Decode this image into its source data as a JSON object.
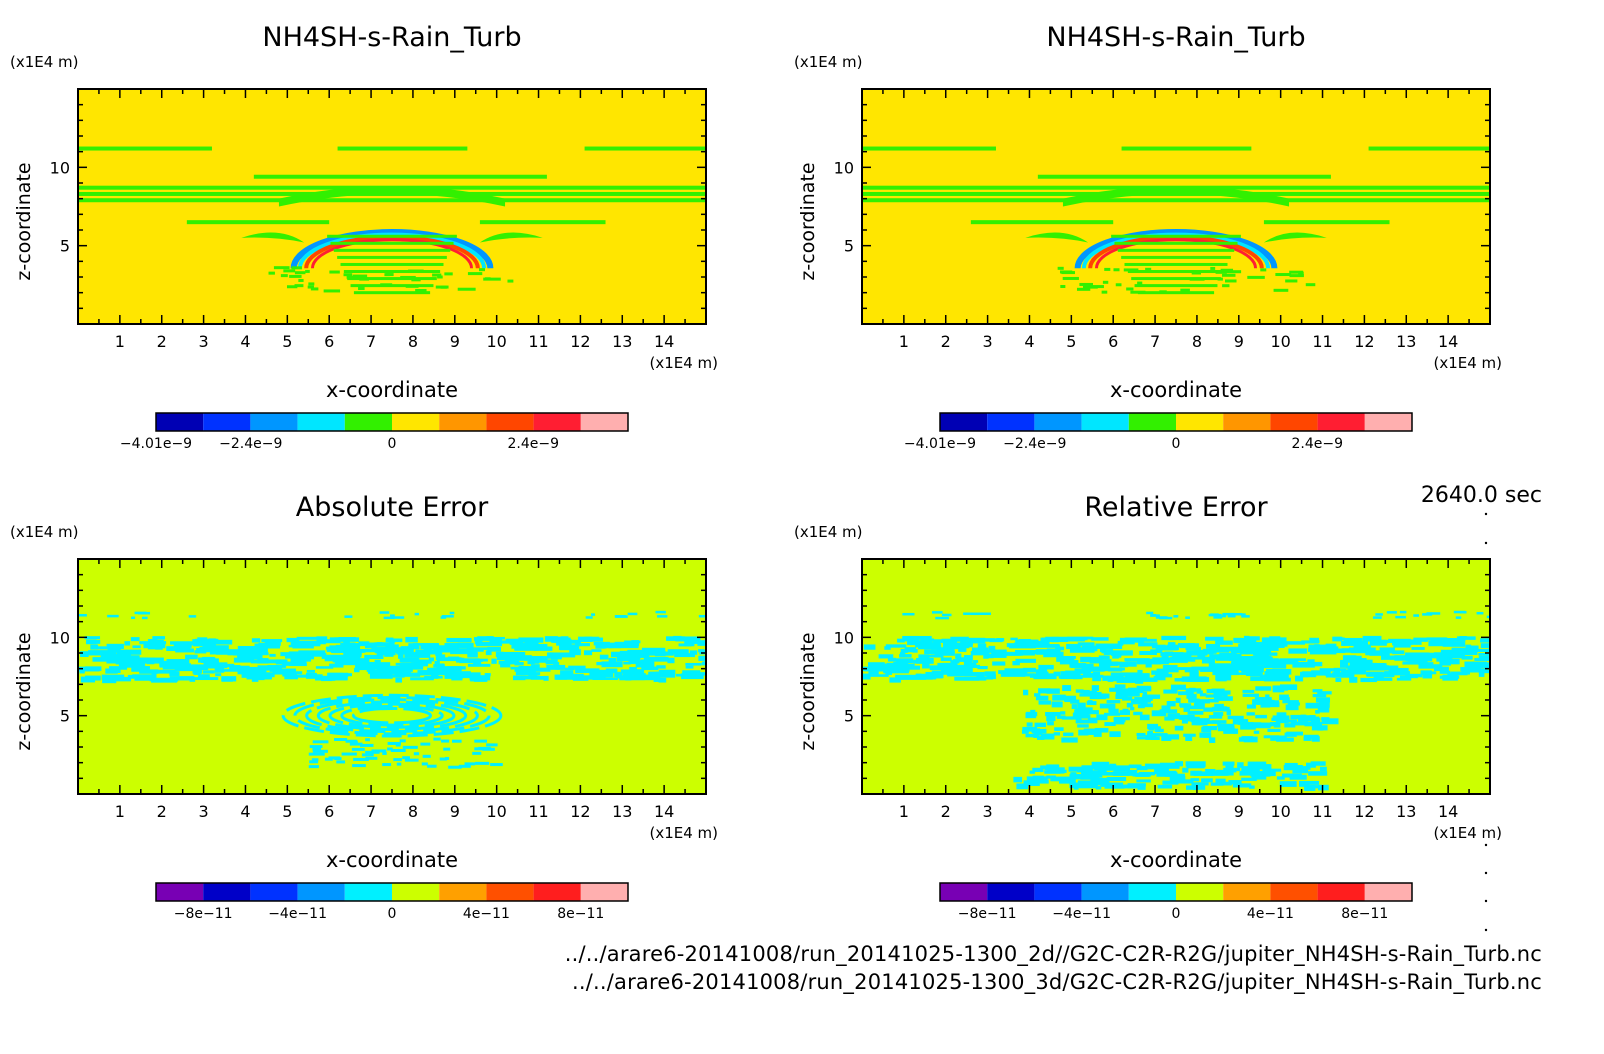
{
  "time_label": "2640.0 sec",
  "files": [
    "../../arare6-20141008/run_20141025-1300_2d//G2C-C2R-R2G/jupiter_NH4SH-s-Rain_Turb.nc",
    "../../arare6-20141008/run_20141025-1300_3d/G2C-C2R-R2G/jupiter_NH4SH-s-Rain_Turb.nc"
  ],
  "chart_data": [
    {
      "type": "heatmap",
      "title": "NH4SH-s-Rain_Turb",
      "xlabel": "x-coordinate",
      "ylabel": "z-coordinate",
      "xunit": "(x1E4 m)",
      "yunit": "(x1E4 m)",
      "xlim": [
        0,
        15
      ],
      "ylim": [
        0,
        15
      ],
      "xticks": [
        "1",
        "2",
        "3",
        "4",
        "5",
        "6",
        "7",
        "8",
        "9",
        "10",
        "11",
        "12",
        "13",
        "14"
      ],
      "yticks": [
        "5",
        "10"
      ],
      "background": "#ffe600",
      "pattern": "bubble",
      "colorbar": {
        "colors": [
          "#0000b4",
          "#0032ff",
          "#0096ff",
          "#00e6ff",
          "#32f000",
          "#ffe600",
          "#ff9600",
          "#ff4600",
          "#ff1e32",
          "#ffafaf"
        ],
        "tick_labels": [
          {
            "label": "−4.01e−9",
            "value": -4.01e-09
          },
          {
            "label": "−2.4e−9",
            "value": -2.4e-09
          },
          {
            "label": "0",
            "value": 0
          },
          {
            "label": "2.4e−9",
            "value": 2.4e-09
          }
        ],
        "range": [
          -4.01e-09,
          4.01e-09
        ]
      }
    },
    {
      "type": "heatmap",
      "title": "NH4SH-s-Rain_Turb",
      "xlabel": "x-coordinate",
      "ylabel": "z-coordinate",
      "xunit": "(x1E4 m)",
      "yunit": "(x1E4 m)",
      "xlim": [
        0,
        15
      ],
      "ylim": [
        0,
        15
      ],
      "xticks": [
        "1",
        "2",
        "3",
        "4",
        "5",
        "6",
        "7",
        "8",
        "9",
        "10",
        "11",
        "12",
        "13",
        "14"
      ],
      "yticks": [
        "5",
        "10"
      ],
      "background": "#ffe600",
      "pattern": "bubble",
      "colorbar": {
        "colors": [
          "#0000b4",
          "#0032ff",
          "#0096ff",
          "#00e6ff",
          "#32f000",
          "#ffe600",
          "#ff9600",
          "#ff4600",
          "#ff1e32",
          "#ffafaf"
        ],
        "tick_labels": [
          {
            "label": "−4.01e−9",
            "value": -4.01e-09
          },
          {
            "label": "−2.4e−9",
            "value": -2.4e-09
          },
          {
            "label": "0",
            "value": 0
          },
          {
            "label": "2.4e−9",
            "value": 2.4e-09
          }
        ],
        "range": [
          -4.01e-09,
          4.01e-09
        ]
      }
    },
    {
      "type": "heatmap",
      "title": "Absolute Error",
      "xlabel": "x-coordinate",
      "ylabel": "z-coordinate",
      "xunit": "(x1E4 m)",
      "yunit": "(x1E4 m)",
      "xlim": [
        0,
        15
      ],
      "ylim": [
        0,
        15
      ],
      "xticks": [
        "1",
        "2",
        "3",
        "4",
        "5",
        "6",
        "7",
        "8",
        "9",
        "10",
        "11",
        "12",
        "13",
        "14"
      ],
      "yticks": [
        "5",
        "10"
      ],
      "background": "#ccff00",
      "pattern": "noise_abs",
      "colorbar": {
        "colors": [
          "#7800b4",
          "#0000c8",
          "#0032ff",
          "#0096ff",
          "#00f0ff",
          "#ccff00",
          "#ffa000",
          "#ff5000",
          "#ff1e1e",
          "#ffafaf"
        ],
        "tick_labels": [
          {
            "label": "−8e−11",
            "value": -8e-11
          },
          {
            "label": "−4e−11",
            "value": -4e-11
          },
          {
            "label": "0",
            "value": 0
          },
          {
            "label": "4e−11",
            "value": 4e-11
          },
          {
            "label": "8e−11",
            "value": 8e-11
          }
        ],
        "range": [
          -1e-10,
          1e-10
        ]
      }
    },
    {
      "type": "heatmap",
      "title": "Relative Error",
      "xlabel": "x-coordinate",
      "ylabel": "z-coordinate",
      "xunit": "(x1E4 m)",
      "yunit": "(x1E4 m)",
      "xlim": [
        0,
        15
      ],
      "ylim": [
        0,
        15
      ],
      "xticks": [
        "1",
        "2",
        "3",
        "4",
        "5",
        "6",
        "7",
        "8",
        "9",
        "10",
        "11",
        "12",
        "13",
        "14"
      ],
      "yticks": [
        "5",
        "10"
      ],
      "background": "#ccff00",
      "pattern": "noise_rel",
      "colorbar": {
        "colors": [
          "#7800b4",
          "#0000c8",
          "#0032ff",
          "#0096ff",
          "#00f0ff",
          "#ccff00",
          "#ffa000",
          "#ff5000",
          "#ff1e1e",
          "#ffafaf"
        ],
        "tick_labels": [
          {
            "label": "−8e−11",
            "value": -8e-11
          },
          {
            "label": "−4e−11",
            "value": -4e-11
          },
          {
            "label": "0",
            "value": 0
          },
          {
            "label": "4e−11",
            "value": 4e-11
          },
          {
            "label": "8e−11",
            "value": 8e-11
          }
        ],
        "range": [
          -1e-10,
          1e-10
        ]
      }
    }
  ]
}
